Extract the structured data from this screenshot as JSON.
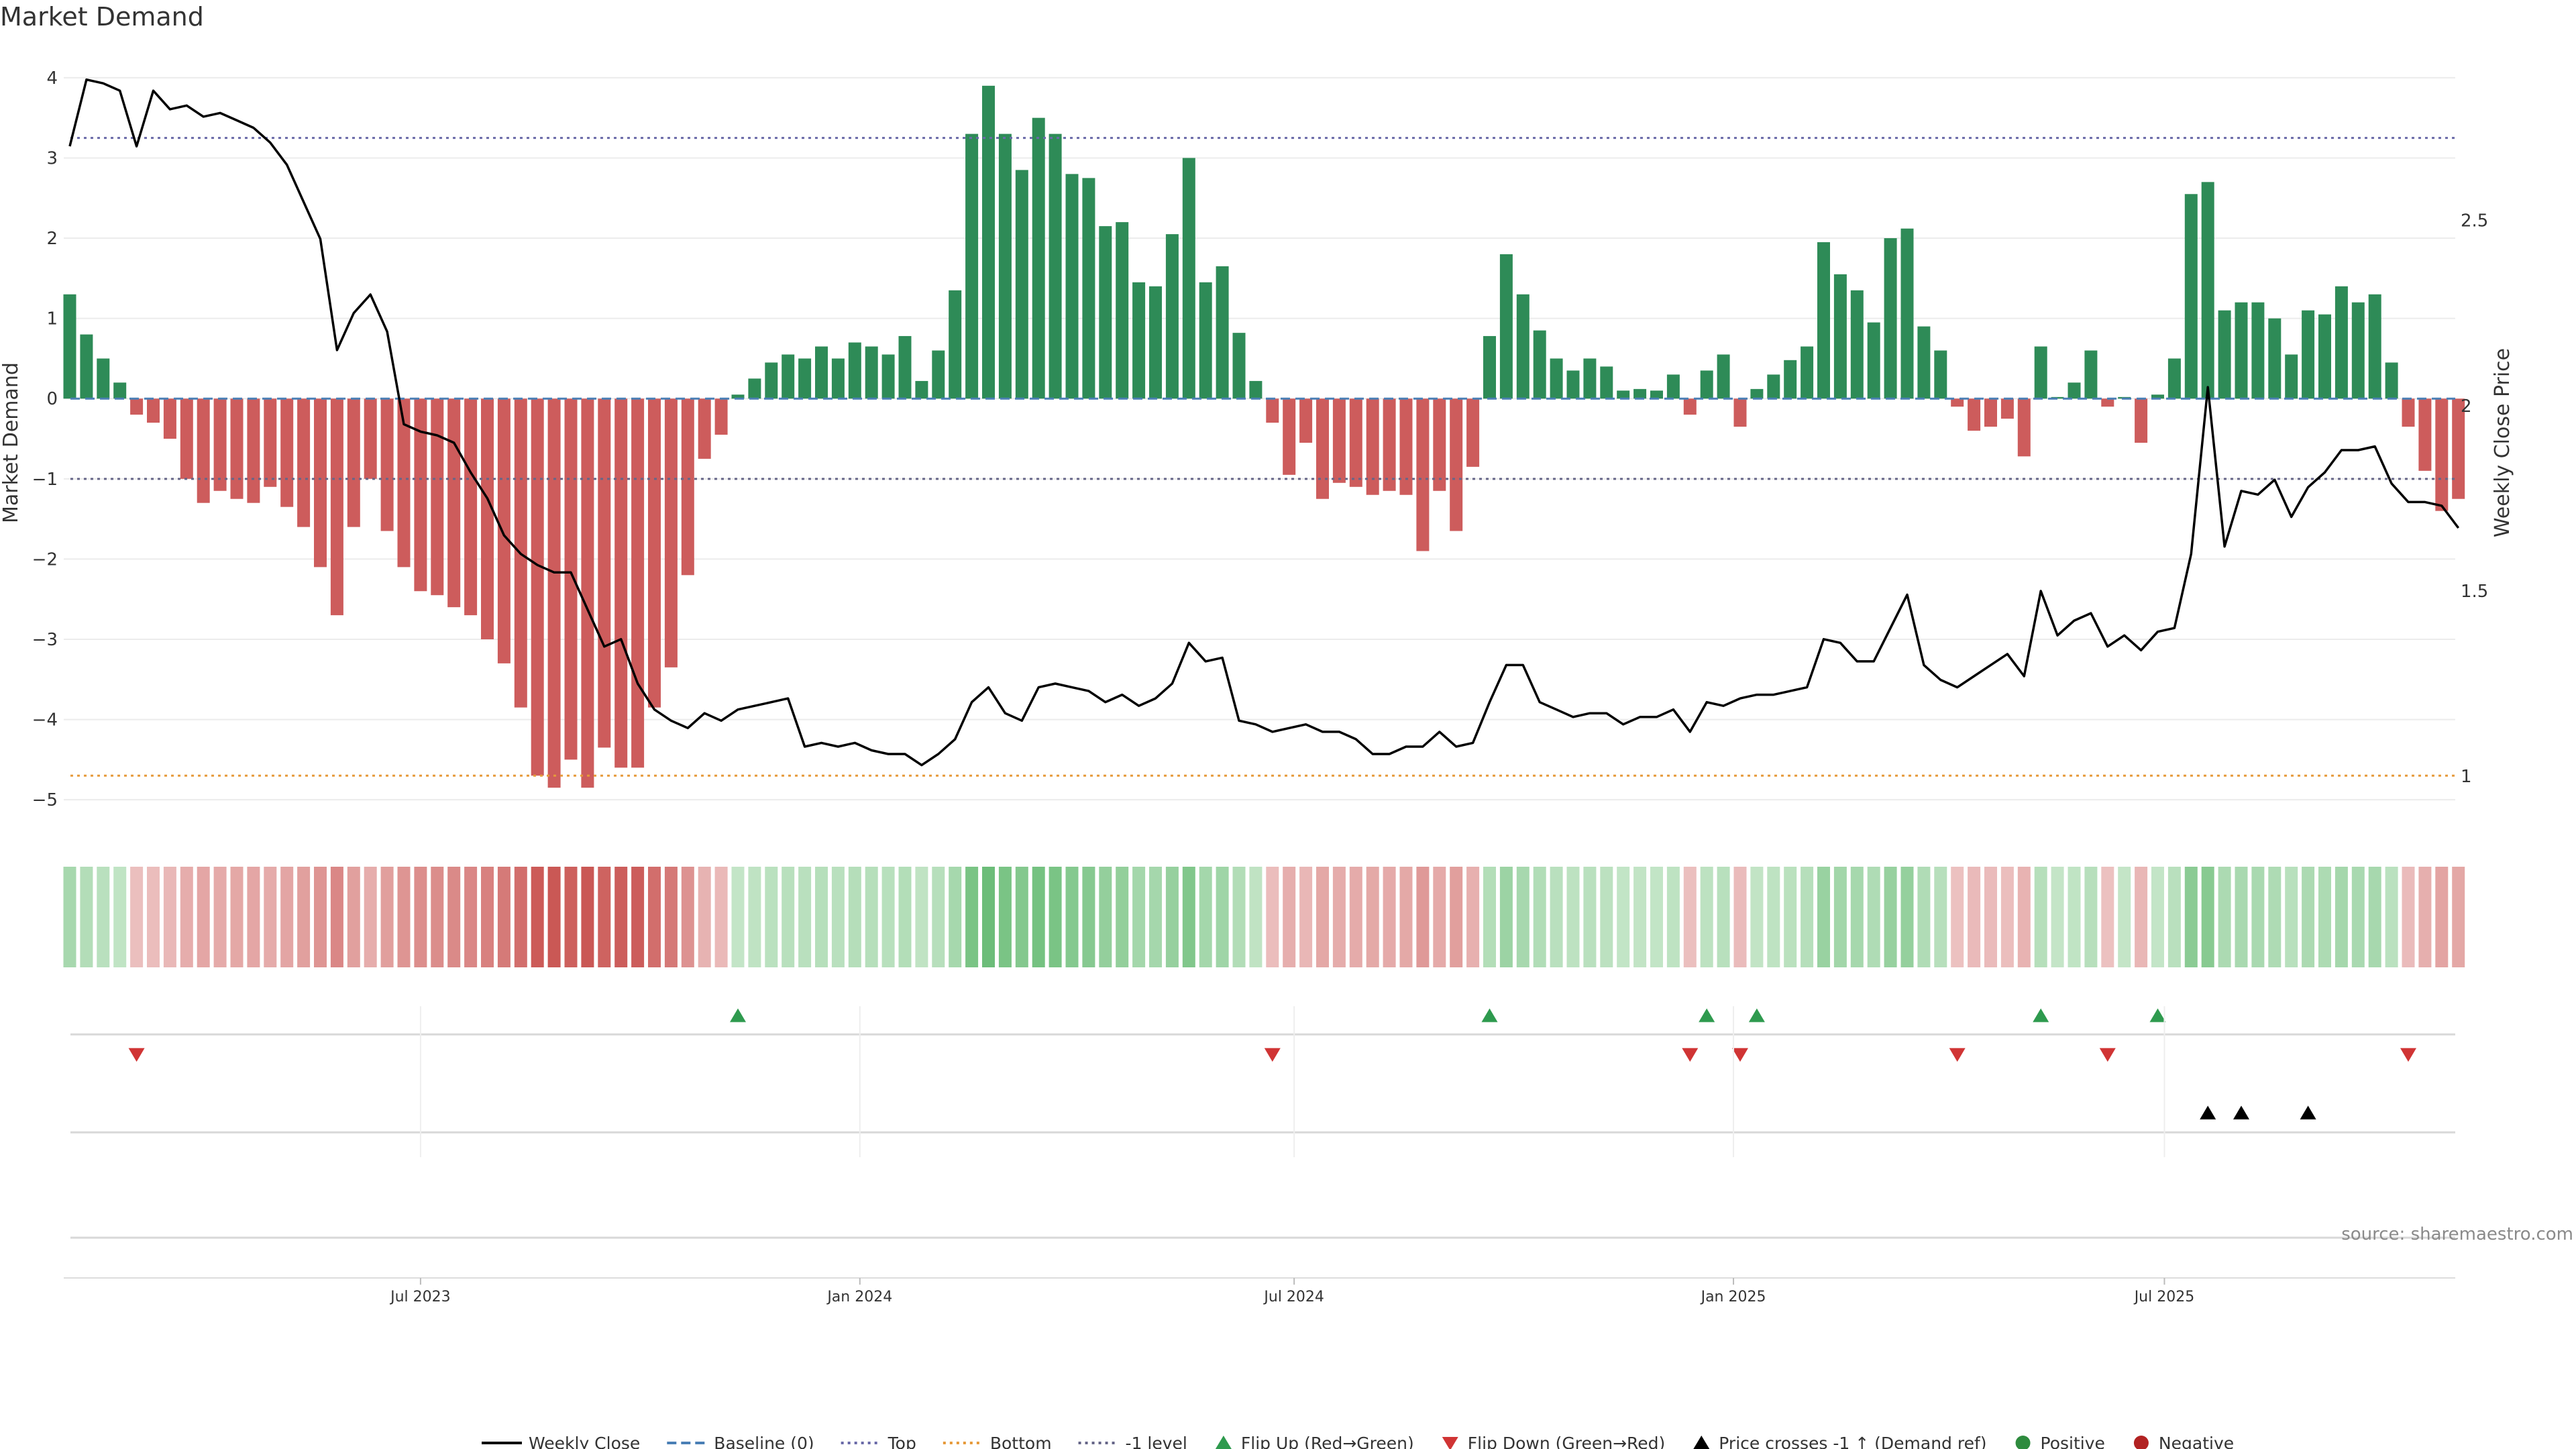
{
  "chart_data": {
    "type": "bar",
    "title": "Market Demand",
    "ylabel": "Market Demand",
    "y2label": "Weekly Close Price",
    "ylim": [
      -5.4,
      4.3
    ],
    "y2lim": [
      0.85,
      2.95
    ],
    "yticks": [
      4,
      3,
      2,
      1,
      0,
      -1,
      -2,
      -3,
      -4,
      -5
    ],
    "y2ticks": [
      2.5,
      2,
      1.5,
      1
    ],
    "xticks": [
      {
        "label": "Jul 2023",
        "week": 21
      },
      {
        "label": "Jan 2024",
        "week": 47.3
      },
      {
        "label": "Jul 2024",
        "week": 73.3
      },
      {
        "label": "Jan 2025",
        "week": 99.6
      },
      {
        "label": "Jul 2025",
        "week": 125.4
      }
    ],
    "reference_lines": {
      "top": 3.25,
      "bottom": -4.7,
      "minus_one": -1,
      "baseline": 0
    },
    "demand": [
      1.3,
      0.8,
      0.5,
      0.2,
      -0.2,
      -0.3,
      -0.5,
      -1.0,
      -1.3,
      -1.15,
      -1.25,
      -1.3,
      -1.1,
      -1.35,
      -1.6,
      -2.1,
      -2.7,
      -1.6,
      -1.0,
      -1.65,
      -2.1,
      -2.4,
      -2.45,
      -2.6,
      -2.7,
      -3.0,
      -3.3,
      -3.85,
      -4.7,
      -4.85,
      -4.5,
      -4.85,
      -4.35,
      -4.6,
      -4.6,
      -3.85,
      -3.35,
      -2.2,
      -0.75,
      -0.45,
      0.05,
      0.25,
      0.45,
      0.55,
      0.5,
      0.65,
      0.5,
      0.7,
      0.65,
      0.55,
      0.78,
      0.22,
      0.6,
      1.35,
      3.3,
      3.9,
      3.3,
      2.85,
      3.5,
      3.3,
      2.8,
      2.75,
      2.15,
      2.2,
      1.45,
      1.4,
      2.05,
      3.0,
      1.45,
      1.65,
      0.82,
      0.22,
      -0.3,
      -0.95,
      -0.55,
      -1.25,
      -1.05,
      -1.1,
      -1.2,
      -1.15,
      -1.2,
      -1.9,
      -1.15,
      -1.65,
      -0.85,
      0.78,
      1.8,
      1.3,
      0.85,
      0.5,
      0.35,
      0.5,
      0.4,
      0.1,
      0.12,
      0.1,
      0.3,
      -0.2,
      0.35,
      0.55,
      -0.35,
      0.12,
      0.3,
      0.48,
      0.65,
      1.95,
      1.55,
      1.35,
      0.95,
      2.0,
      2.12,
      0.9,
      0.6,
      -0.1,
      -0.4,
      -0.35,
      -0.25,
      -0.72,
      0.65,
      0.02,
      0.2,
      0.6,
      -0.1,
      0.02,
      -0.55,
      0.05,
      0.5,
      2.55,
      2.7,
      1.1,
      1.2,
      1.2,
      1.0,
      0.55,
      1.1,
      1.05,
      1.4,
      1.2,
      1.3,
      0.45,
      -0.35,
      -0.9,
      -1.4,
      -1.25
    ],
    "price": [
      2.7,
      2.88,
      2.87,
      2.85,
      2.7,
      2.85,
      2.8,
      2.81,
      2.78,
      2.79,
      2.77,
      2.75,
      2.71,
      2.65,
      2.55,
      2.45,
      2.15,
      2.25,
      2.3,
      2.2,
      1.95,
      1.93,
      1.92,
      1.9,
      1.82,
      1.75,
      1.65,
      1.6,
      1.57,
      1.55,
      1.55,
      1.45,
      1.35,
      1.37,
      1.25,
      1.18,
      1.15,
      1.13,
      1.17,
      1.15,
      1.18,
      1.19,
      1.2,
      1.21,
      1.08,
      1.09,
      1.08,
      1.09,
      1.07,
      1.06,
      1.06,
      1.03,
      1.06,
      1.1,
      1.2,
      1.24,
      1.17,
      1.15,
      1.24,
      1.25,
      1.24,
      1.23,
      1.2,
      1.22,
      1.19,
      1.21,
      1.25,
      1.36,
      1.31,
      1.32,
      1.15,
      1.14,
      1.12,
      1.13,
      1.14,
      1.12,
      1.12,
      1.1,
      1.06,
      1.06,
      1.08,
      1.08,
      1.12,
      1.08,
      1.09,
      1.2,
      1.3,
      1.3,
      1.2,
      1.18,
      1.16,
      1.17,
      1.17,
      1.14,
      1.16,
      1.16,
      1.18,
      1.12,
      1.2,
      1.19,
      1.21,
      1.22,
      1.22,
      1.23,
      1.24,
      1.37,
      1.36,
      1.31,
      1.31,
      1.4,
      1.49,
      1.3,
      1.26,
      1.24,
      1.27,
      1.3,
      1.33,
      1.27,
      1.5,
      1.38,
      1.42,
      1.44,
      1.35,
      1.38,
      1.34,
      1.39,
      1.4,
      1.6,
      2.05,
      1.62,
      1.77,
      1.76,
      1.8,
      1.7,
      1.78,
      1.82,
      1.88,
      1.88,
      1.89,
      1.79,
      1.74,
      1.74,
      1.73,
      1.67
    ],
    "heat_strip": {
      "description": "one colour cell per week; green = positive demand, red = negative, deeper = stronger"
    },
    "events": {
      "flip_up_weeks": [
        40,
        85,
        98,
        101,
        118,
        125
      ],
      "flip_down_weeks": [
        4,
        72,
        97,
        100,
        113,
        122,
        140
      ],
      "price_cross_weeks": [
        128,
        130,
        134
      ]
    },
    "legend": [
      {
        "label": "Weekly Close",
        "kind": "line-solid",
        "color": "#000000"
      },
      {
        "label": "Baseline (0)",
        "kind": "line-dashed",
        "color": "#4a7fb5"
      },
      {
        "label": "Top",
        "kind": "line-dotted",
        "color": "#6a6aa8"
      },
      {
        "label": "Bottom",
        "kind": "line-dotted",
        "color": "#e69a3a"
      },
      {
        "label": "-1 level",
        "kind": "line-dotted",
        "color": "#666688"
      },
      {
        "label": "Flip Up (Red→Green)",
        "kind": "triangle-up",
        "color": "#2e9a4e"
      },
      {
        "label": "Flip Down (Green→Red)",
        "kind": "triangle-down",
        "color": "#d03434"
      },
      {
        "label": "Price crosses -1 ↑ (Demand ref)",
        "kind": "triangle-up",
        "color": "#000000"
      },
      {
        "label": "Positive",
        "kind": "circle",
        "color": "#2e8b3e"
      },
      {
        "label": "Negative",
        "kind": "circle",
        "color": "#b22222"
      }
    ],
    "source": "source: sharemaestro.com"
  },
  "colors": {
    "positive_bar": "#2e8b57",
    "negative_bar": "#cd5c5c",
    "price_line": "#000000",
    "grid": "#ececec"
  }
}
